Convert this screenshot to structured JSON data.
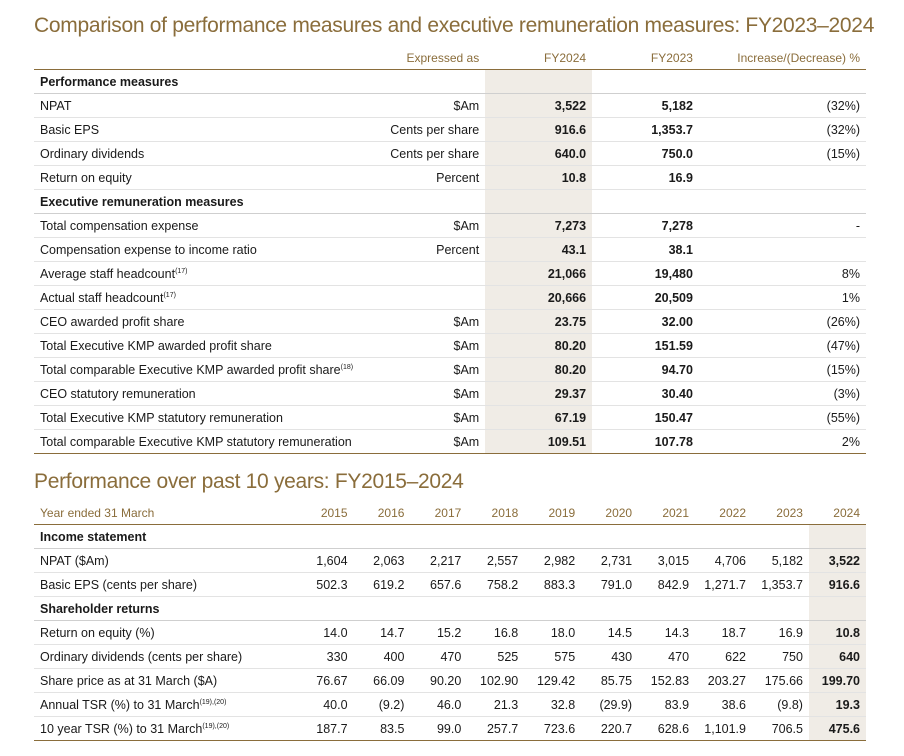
{
  "table1": {
    "title": "Comparison of performance measures and executive remuneration measures: FY2023–2024",
    "headers": {
      "expressed": "Expressed as",
      "fy2024": "FY2024",
      "fy2023": "FY2023",
      "change": "Increase/(Decrease) %"
    },
    "sections": [
      {
        "label": "Performance measures",
        "rows": [
          {
            "name": "NPAT",
            "sup": "",
            "expressed": "$Am",
            "fy2024": "3,522",
            "fy2023": "5,182",
            "change": "(32%)"
          },
          {
            "name": "Basic EPS",
            "sup": "",
            "expressed": "Cents per share",
            "fy2024": "916.6",
            "fy2023": "1,353.7",
            "change": "(32%)"
          },
          {
            "name": "Ordinary dividends",
            "sup": "",
            "expressed": "Cents per share",
            "fy2024": "640.0",
            "fy2023": "750.0",
            "change": "(15%)"
          },
          {
            "name": "Return on equity",
            "sup": "",
            "expressed": "Percent",
            "fy2024": "10.8",
            "fy2023": "16.9",
            "change": ""
          }
        ]
      },
      {
        "label": "Executive remuneration measures",
        "rows": [
          {
            "name": "Total compensation expense",
            "sup": "",
            "expressed": "$Am",
            "fy2024": "7,273",
            "fy2023": "7,278",
            "change": "-"
          },
          {
            "name": "Compensation expense to income ratio",
            "sup": "",
            "expressed": "Percent",
            "fy2024": "43.1",
            "fy2023": "38.1",
            "change": ""
          },
          {
            "name": "Average staff headcount",
            "sup": "(17)",
            "expressed": "",
            "fy2024": "21,066",
            "fy2023": "19,480",
            "change": "8%"
          },
          {
            "name": "Actual staff headcount",
            "sup": "(17)",
            "expressed": "",
            "fy2024": "20,666",
            "fy2023": "20,509",
            "change": "1%"
          },
          {
            "name": "CEO awarded profit share",
            "sup": "",
            "expressed": "$Am",
            "fy2024": "23.75",
            "fy2023": "32.00",
            "change": "(26%)"
          },
          {
            "name": "Total Executive KMP awarded profit share",
            "sup": "",
            "expressed": "$Am",
            "fy2024": "80.20",
            "fy2023": "151.59",
            "change": "(47%)"
          },
          {
            "name": "Total comparable Executive KMP awarded profit share",
            "sup": "(18)",
            "expressed": "$Am",
            "fy2024": "80.20",
            "fy2023": "94.70",
            "change": "(15%)"
          },
          {
            "name": "CEO statutory remuneration",
            "sup": "",
            "expressed": "$Am",
            "fy2024": "29.37",
            "fy2023": "30.40",
            "change": "(3%)"
          },
          {
            "name": "Total Executive KMP statutory remuneration",
            "sup": "",
            "expressed": "$Am",
            "fy2024": "67.19",
            "fy2023": "150.47",
            "change": "(55%)"
          },
          {
            "name": "Total comparable Executive KMP statutory remuneration",
            "sup": "",
            "expressed": "$Am",
            "fy2024": "109.51",
            "fy2023": "107.78",
            "change": "2%"
          }
        ]
      }
    ]
  },
  "table2": {
    "title": "Performance over past 10 years: FY2015–2024",
    "year_header": "Year ended 31 March",
    "years": [
      "2015",
      "2016",
      "2017",
      "2018",
      "2019",
      "2020",
      "2021",
      "2022",
      "2023",
      "2024"
    ],
    "sections": [
      {
        "label": "Income statement",
        "rows": [
          {
            "name": "NPAT ($Am)",
            "sup": "",
            "values": [
              "1,604",
              "2,063",
              "2,217",
              "2,557",
              "2,982",
              "2,731",
              "3,015",
              "4,706",
              "5,182",
              "3,522"
            ]
          },
          {
            "name": "Basic EPS (cents per share)",
            "sup": "",
            "values": [
              "502.3",
              "619.2",
              "657.6",
              "758.2",
              "883.3",
              "791.0",
              "842.9",
              "1,271.7",
              "1,353.7",
              "916.6"
            ]
          }
        ]
      },
      {
        "label": "Shareholder returns",
        "rows": [
          {
            "name": "Return on equity (%)",
            "sup": "",
            "values": [
              "14.0",
              "14.7",
              "15.2",
              "16.8",
              "18.0",
              "14.5",
              "14.3",
              "18.7",
              "16.9",
              "10.8"
            ]
          },
          {
            "name": "Ordinary dividends (cents per share)",
            "sup": "",
            "values": [
              "330",
              "400",
              "470",
              "525",
              "575",
              "430",
              "470",
              "622",
              "750",
              "640"
            ]
          },
          {
            "name": "Share price as at 31 March ($A)",
            "sup": "",
            "values": [
              "76.67",
              "66.09",
              "90.20",
              "102.90",
              "129.42",
              "85.75",
              "152.83",
              "203.27",
              "175.66",
              "199.70"
            ]
          },
          {
            "name": "Annual TSR (%) to 31 March",
            "sup": "(19),(20)",
            "values": [
              "40.0",
              "(9.2)",
              "46.0",
              "21.3",
              "32.8",
              "(29.9)",
              "83.9",
              "38.6",
              "(9.8)",
              "19.3"
            ]
          },
          {
            "name": "10 year TSR (%) to 31 March",
            "sup": "(19),(20)",
            "values": [
              "187.7",
              "83.5",
              "99.0",
              "257.7",
              "723.6",
              "220.7",
              "628.6",
              "1,101.9",
              "706.5",
              "475.6"
            ]
          }
        ]
      }
    ]
  }
}
